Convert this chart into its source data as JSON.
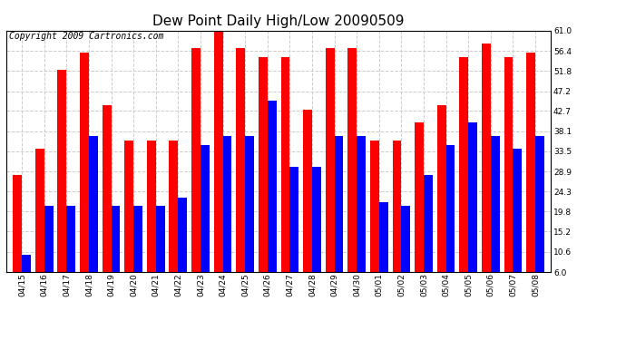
{
  "title": "Dew Point Daily High/Low 20090509",
  "copyright": "Copyright 2009 Cartronics.com",
  "categories": [
    "04/15",
    "04/16",
    "04/17",
    "04/18",
    "04/19",
    "04/20",
    "04/21",
    "04/22",
    "04/23",
    "04/24",
    "04/25",
    "04/26",
    "04/27",
    "04/28",
    "04/29",
    "04/30",
    "05/01",
    "05/02",
    "05/03",
    "05/04",
    "05/05",
    "05/06",
    "05/07",
    "05/08"
  ],
  "highs": [
    28.0,
    34.0,
    52.0,
    56.0,
    44.0,
    36.0,
    36.0,
    36.0,
    57.0,
    61.0,
    57.0,
    55.0,
    55.0,
    43.0,
    57.0,
    57.0,
    36.0,
    36.0,
    40.0,
    44.0,
    55.0,
    58.0,
    55.0,
    56.0
  ],
  "lows": [
    10.0,
    21.0,
    21.0,
    37.0,
    21.0,
    21.0,
    21.0,
    23.0,
    35.0,
    37.0,
    37.0,
    45.0,
    30.0,
    30.0,
    37.0,
    37.0,
    22.0,
    21.0,
    28.0,
    35.0,
    40.0,
    37.0,
    34.0,
    37.0
  ],
  "high_color": "#ff0000",
  "low_color": "#0000ff",
  "bg_color": "#ffffff",
  "plot_bg_color": "#ffffff",
  "grid_color": "#cccccc",
  "ylim_min": 6.0,
  "ylim_max": 61.0,
  "yticks": [
    6.0,
    10.6,
    15.2,
    19.8,
    24.3,
    28.9,
    33.5,
    38.1,
    42.7,
    47.2,
    51.8,
    56.4,
    61.0
  ],
  "title_fontsize": 11,
  "copyright_fontsize": 7,
  "tick_fontsize": 6.5,
  "bar_width": 0.4
}
